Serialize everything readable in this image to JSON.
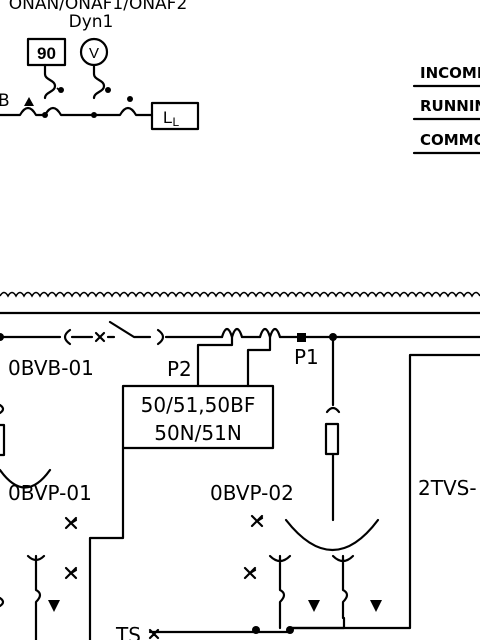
{
  "transformer": {
    "rating": "ONAN/ONAF1/ONAF2",
    "vector_group": "Dyn1",
    "temp_gauge": "90",
    "voltmeter": "V",
    "terminal_b": "B",
    "level_box": "L",
    "level_sub": "L"
  },
  "legend": {
    "items": [
      "INCOMI",
      "RUNNIN",
      "COMMO"
    ]
  },
  "bus": {
    "breaker_label": "0BVB-01",
    "ct_p2": "P2",
    "ct_p1": "P1",
    "relay_line1": "50/51,50BF",
    "relay_line2": "50N/51N"
  },
  "pts": {
    "left": "0BVP-01",
    "right": "0BVP-02",
    "tvs": "2TVS-",
    "ts": "TS"
  }
}
